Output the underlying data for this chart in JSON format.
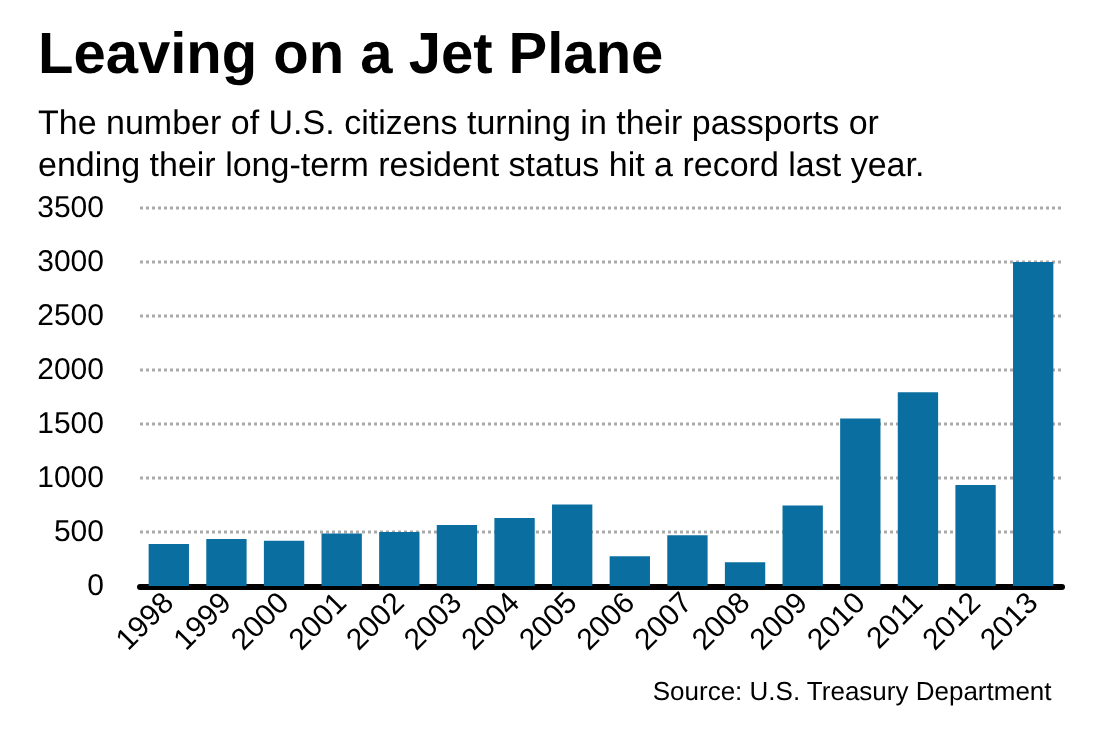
{
  "chart_data": {
    "type": "bar",
    "title": "Leaving on a Jet Plane",
    "subtitle": "The number of U.S. citizens turning in their passports or\nending their long-term resident status hit a record last year.",
    "categories": [
      "1998",
      "1999",
      "2000",
      "2001",
      "2002",
      "2003",
      "2004",
      "2005",
      "2006",
      "2007",
      "2008",
      "2009",
      "2010",
      "2011",
      "2012",
      "2013"
    ],
    "values": [
      390,
      435,
      420,
      485,
      500,
      565,
      630,
      755,
      275,
      470,
      220,
      745,
      1550,
      1795,
      935,
      3000
    ],
    "color": "#0a6fa0",
    "ylim": [
      0,
      3500
    ],
    "yticks": [
      0,
      500,
      1000,
      1500,
      2000,
      2500,
      3000,
      3500
    ],
    "grid": "y",
    "annotations": [
      "Source: U.S. Treasury Department"
    ]
  }
}
